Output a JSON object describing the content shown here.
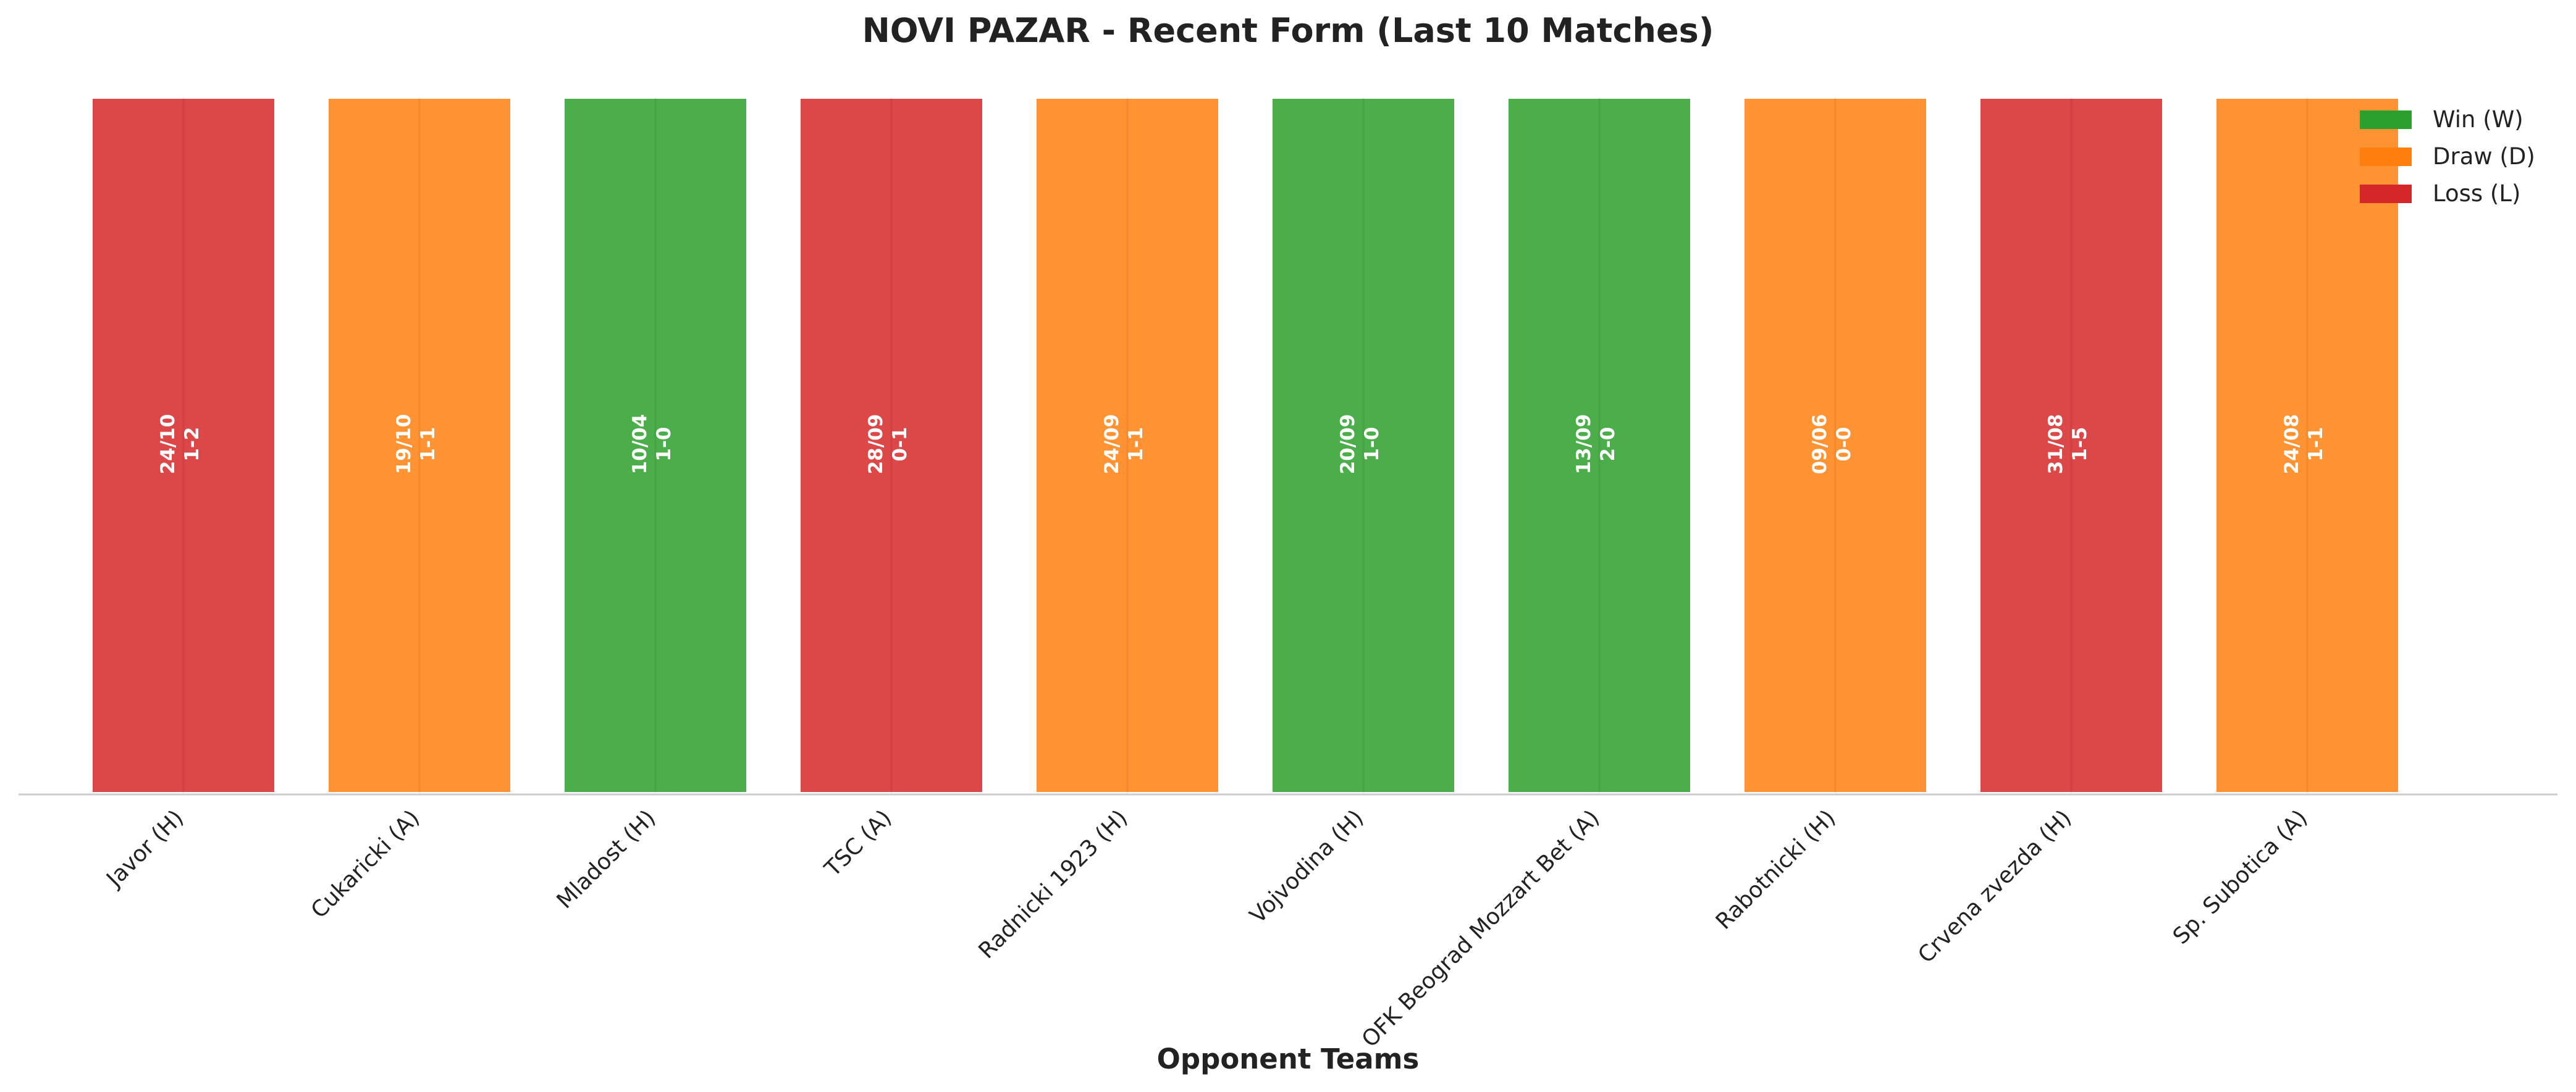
{
  "chart_data": {
    "type": "bar",
    "title": "NOVI PAZAR - Recent Form (Last 10 Matches)",
    "xlabel": "Opponent Teams",
    "ylabel": "",
    "categories": [
      "Javor (H)",
      "Cukaricki (A)",
      "Mladost (H)",
      "TSC (A)",
      "Radnicki 1923 (H)",
      "Vojvodina (H)",
      "OFK Beograd Mozzart Bet (A)",
      "Rabotnicki (H)",
      "Crvena zvezda (H)",
      "Sp. Subotica (A)"
    ],
    "values": [
      1,
      1,
      1,
      1,
      1,
      1,
      1,
      1,
      1,
      1
    ],
    "results": [
      "L",
      "D",
      "W",
      "L",
      "D",
      "W",
      "W",
      "D",
      "L",
      "D"
    ],
    "dates": [
      "24/10",
      "19/10",
      "10/04",
      "28/09",
      "24/09",
      "20/09",
      "13/09",
      "09/06",
      "31/08",
      "24/08"
    ],
    "scores": [
      "1-2",
      "1-1",
      "1-0",
      "0-1",
      "1-1",
      "1-0",
      "2-0",
      "0-0",
      "1-5",
      "1-1"
    ],
    "ylim": [
      0,
      1
    ],
    "grid": false,
    "legend": {
      "placement": "top-right",
      "entries": [
        {
          "key": "W",
          "label": "Win (W)",
          "color": "#2ca02c"
        },
        {
          "key": "D",
          "label": "Draw (D)",
          "color": "#ff7f0e"
        },
        {
          "key": "L",
          "label": "Loss (L)",
          "color": "#d62728"
        }
      ]
    }
  }
}
